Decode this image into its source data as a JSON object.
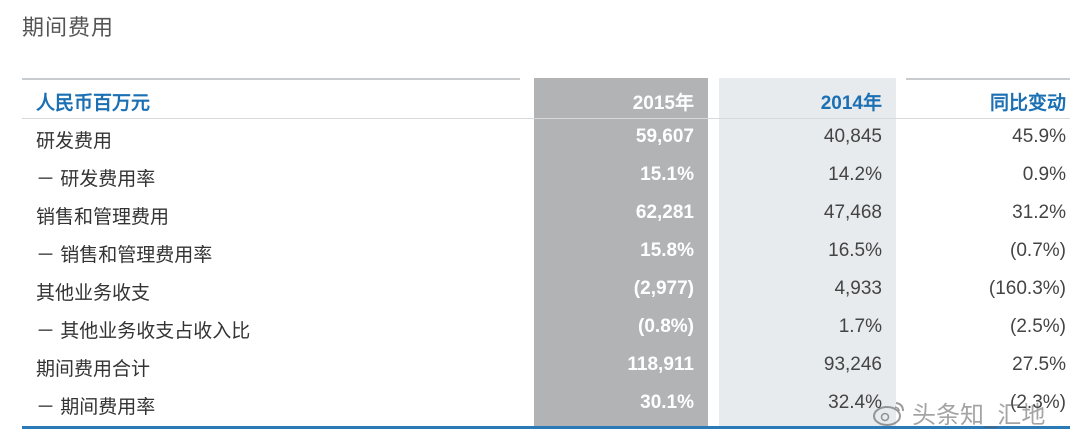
{
  "title": "期间费用",
  "table": {
    "headers": {
      "label": "人民币百万元",
      "y2015": "2015年",
      "y2014": "2014年",
      "change": "同比变动"
    },
    "rows": [
      {
        "label": "研发费用",
        "y2015": "59,607",
        "y2014": "40,845",
        "change": "45.9%"
      },
      {
        "label": "－ 研发费用率",
        "y2015": "15.1%",
        "y2014": "14.2%",
        "change": "0.9%"
      },
      {
        "label": "销售和管理费用",
        "y2015": "62,281",
        "y2014": "47,468",
        "change": "31.2%"
      },
      {
        "label": "－ 销售和管理费用率",
        "y2015": "15.8%",
        "y2014": "16.5%",
        "change": "(0.7%)"
      },
      {
        "label": "其他业务收支",
        "y2015": "(2,977)",
        "y2014": "4,933",
        "change": "(160.3%)"
      },
      {
        "label": "－ 其他业务收支占收入比",
        "y2015": "(0.8%)",
        "y2014": "1.7%",
        "change": "(2.5%)"
      },
      {
        "label": "期间费用合计",
        "y2015": "118,911",
        "y2014": "93,246",
        "change": "27.5%"
      },
      {
        "label": "－ 期间费用率",
        "y2015": "30.1%",
        "y2014": "32.4%",
        "change": "(2.3%)"
      }
    ]
  },
  "watermark": {
    "text": "头条知_汇地",
    "icon": "weibo-logo-icon"
  },
  "colors": {
    "accent": "#1b6fb3",
    "col2015_bg": "#b1b3b5",
    "col2014_bg": "#e8ebee",
    "rule": "#2a7ab8"
  }
}
